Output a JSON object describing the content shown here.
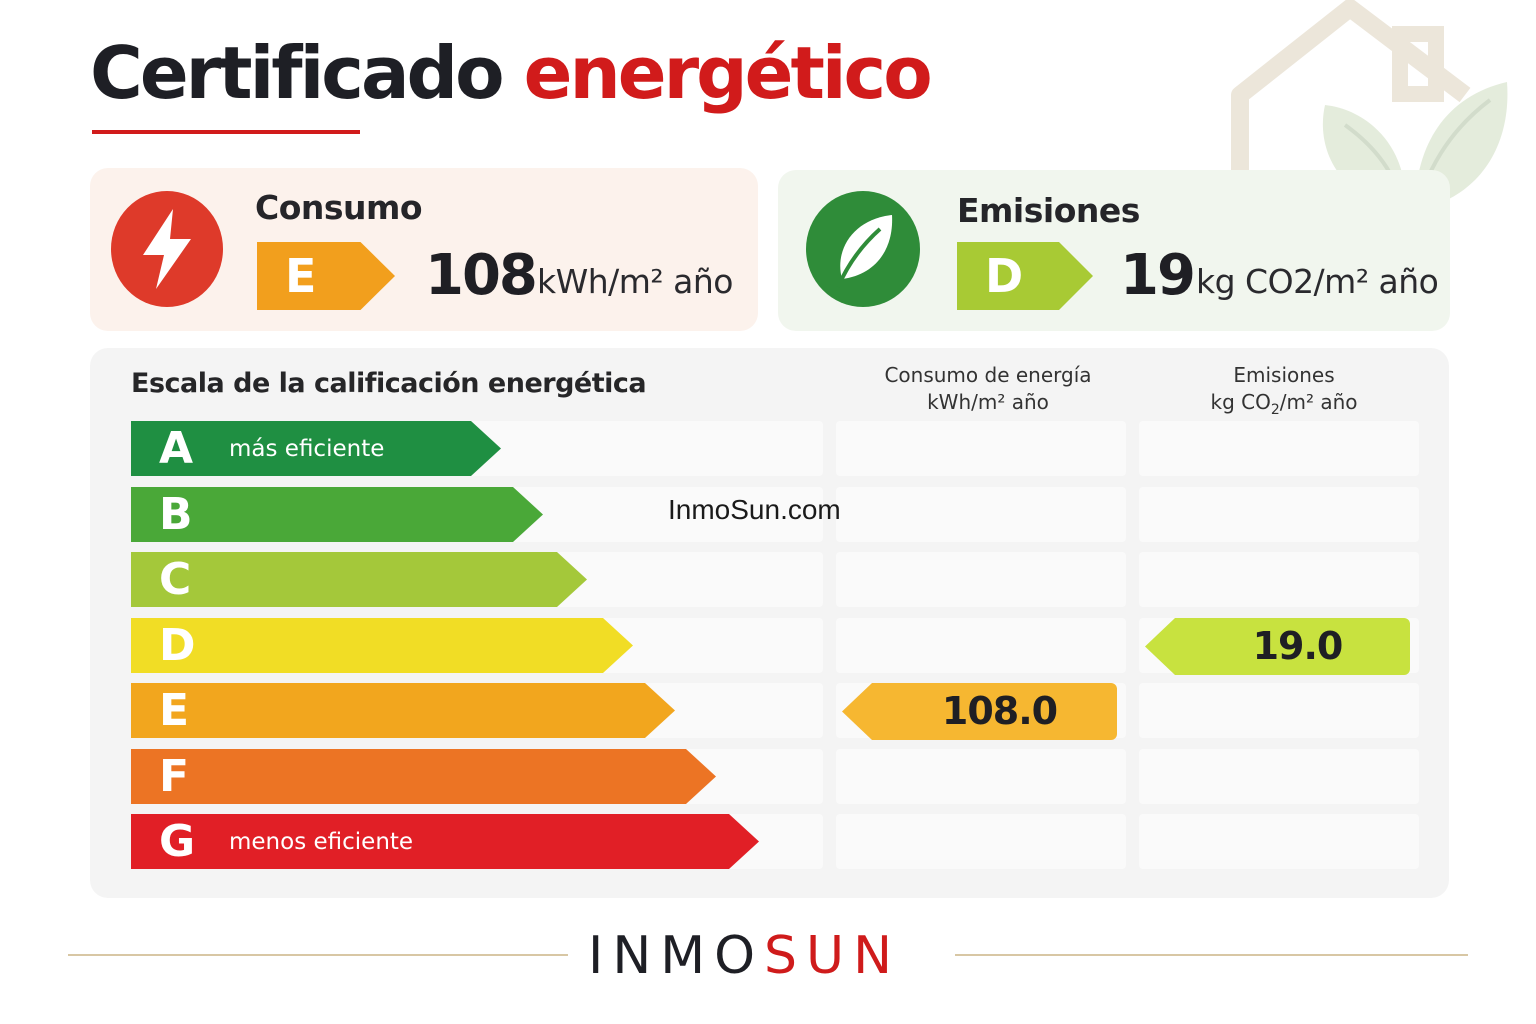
{
  "title": {
    "part1": "Certificado",
    "part2": "energético"
  },
  "colors": {
    "accent_red": "#d11b1b",
    "consumo_card_bg": "#fcf2ec",
    "emisiones_card_bg": "#f1f6ee",
    "grade_A": "#1f8f42",
    "grade_B": "#4aa838",
    "grade_C": "#a4c83a",
    "grade_D": "#f1dd25",
    "grade_E": "#f2a61e",
    "grade_F": "#ec7424",
    "grade_G": "#e11f26"
  },
  "consumo": {
    "icon": "lightning-icon",
    "label": "Consumo",
    "grade": "E",
    "value": "108",
    "unit": "kWh/m² año"
  },
  "emisiones": {
    "icon": "leaf-icon",
    "label": "Emisiones",
    "grade": "D",
    "value": "19",
    "unit": "kg CO2/m² año"
  },
  "scale": {
    "title": "Escala de la calificación energética",
    "col_consumo": {
      "line1": "Consumo de energía",
      "line2": "kWh/m² año"
    },
    "col_emisiones": {
      "line1": "Emisiones",
      "line2_pre": "kg CO",
      "line2_sub": "2",
      "line2_post": "/m² año"
    },
    "grades": [
      {
        "letter": "A",
        "note": "más eficiente"
      },
      {
        "letter": "B",
        "note": ""
      },
      {
        "letter": "C",
        "note": ""
      },
      {
        "letter": "D",
        "note": ""
      },
      {
        "letter": "E",
        "note": ""
      },
      {
        "letter": "F",
        "note": ""
      },
      {
        "letter": "G",
        "note": "menos eficiente"
      }
    ],
    "consumo_marker": {
      "grade": "E",
      "value": "108.0"
    },
    "emisiones_marker": {
      "grade": "D",
      "value": "19.0"
    }
  },
  "watermark": "InmoSun.com",
  "footer": {
    "brand_part1": "INMO",
    "brand_part2": "SUN"
  }
}
